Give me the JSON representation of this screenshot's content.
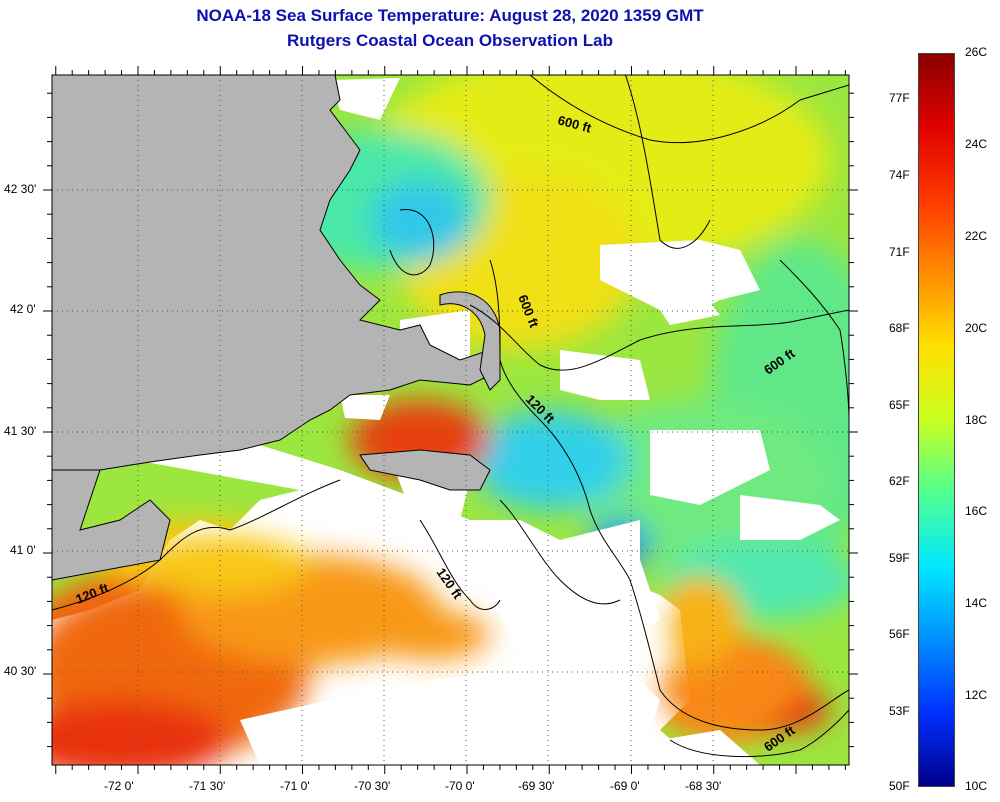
{
  "header": {
    "title_line1": "NOAA-18 Sea Surface Temperature:  August 28, 2020 1359 GMT",
    "title_line2": "Rutgers Coastal Ocean Observation Lab"
  },
  "map": {
    "land_color": "#b4b4b4",
    "no_data_color": "#ffffff",
    "lon_labels": [
      "-72 0'",
      "-71 30'",
      "-71 0'",
      "-70 30'",
      "-70 0'",
      "-69 30'",
      "-69 0'",
      "-68 30'"
    ],
    "lat_labels": [
      "42 30'",
      "42 0'",
      "41 30'",
      "41 0'",
      "40 30'"
    ],
    "isobath_labels": [
      "600 ft",
      "600 ft",
      "600 ft",
      "600 ft",
      "120 ft",
      "120 ft",
      "120 ft"
    ]
  },
  "colorbar": {
    "celsius_labels": [
      "26C",
      "24C",
      "22C",
      "20C",
      "18C",
      "16C",
      "14C",
      "12C",
      "10C"
    ],
    "fahrenheit_labels": [
      "77F",
      "74F",
      "71F",
      "68F",
      "65F",
      "62F",
      "59F",
      "56F",
      "53F",
      "50F"
    ],
    "gradient_stops": [
      "#8b0000",
      "#e00000",
      "#ff3a00",
      "#ff8c00",
      "#ffe000",
      "#c8ff20",
      "#50ff90",
      "#00e8ff",
      "#0090ff",
      "#0030ff",
      "#00008b"
    ]
  }
}
